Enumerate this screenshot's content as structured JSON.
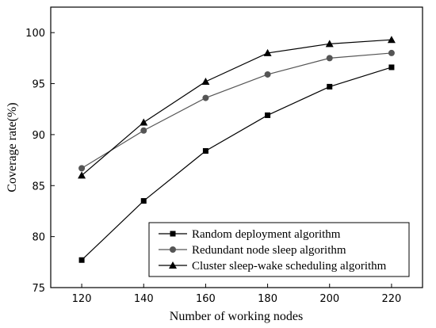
{
  "chart_data": {
    "type": "line",
    "xlabel": "Number of working nodes",
    "ylabel": "Coverage rate(%)",
    "x": [
      120,
      140,
      160,
      180,
      200,
      220
    ],
    "xlim": [
      110,
      230
    ],
    "ylim": [
      75,
      102.5
    ],
    "xticks": [
      "120",
      "140",
      "160",
      "180",
      "200",
      "220"
    ],
    "yticks": [
      "75",
      "80",
      "85",
      "90",
      "95",
      "100"
    ],
    "grid": false,
    "legend_position": "bottom-right",
    "series": [
      {
        "name": "Random deployment algorithm",
        "marker": "square",
        "color": "#000000",
        "values": [
          77.7,
          83.5,
          88.4,
          91.9,
          94.7,
          96.6
        ]
      },
      {
        "name": "Redundant node sleep algorithm",
        "marker": "circle",
        "color": "#555555",
        "values": [
          86.7,
          90.4,
          93.6,
          95.9,
          97.5,
          98.0
        ]
      },
      {
        "name": "Cluster sleep-wake scheduling algorithm",
        "marker": "triangle",
        "color": "#000000",
        "values": [
          86.0,
          91.2,
          95.2,
          98.0,
          98.9,
          99.3
        ]
      }
    ]
  }
}
